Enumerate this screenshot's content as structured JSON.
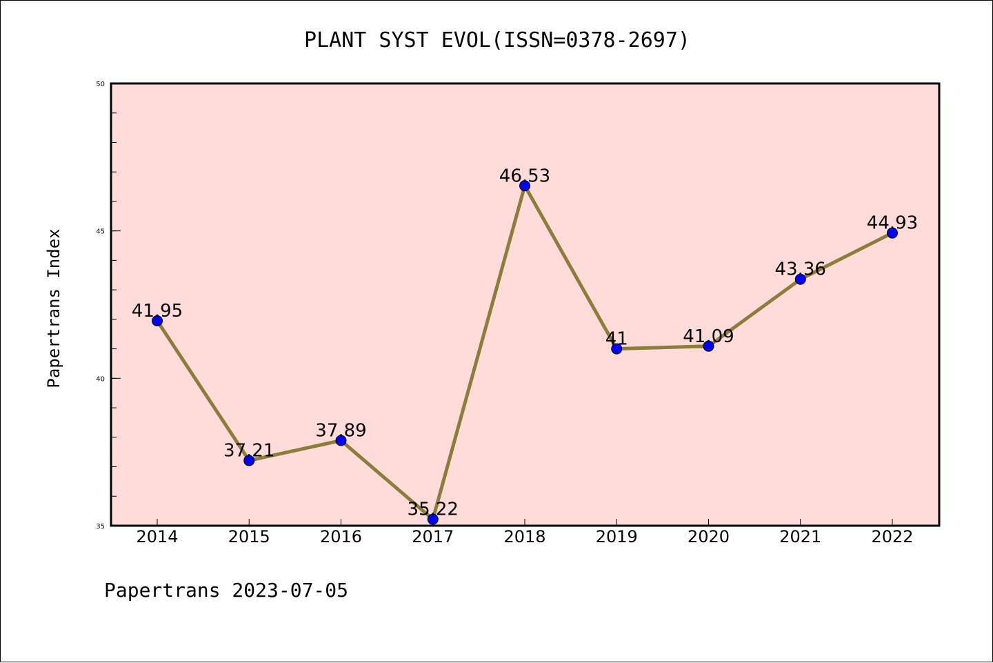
{
  "chart_data": {
    "type": "line",
    "title": "PLANT SYST EVOL(ISSN=0378-2697)",
    "xlabel": "",
    "ylabel": "Papertrans Index",
    "categories": [
      "2014",
      "2015",
      "2016",
      "2017",
      "2018",
      "2019",
      "2020",
      "2021",
      "2022"
    ],
    "series": [
      {
        "values": [
          41.95,
          37.21,
          37.89,
          35.22,
          46.53,
          41,
          41.09,
          43.36,
          44.93
        ],
        "labels": [
          "41.95",
          "37.21",
          "37.89",
          "35.22",
          "46.53",
          "41",
          "41.09",
          "43.36",
          "44.93"
        ]
      }
    ],
    "ylim": [
      35,
      50
    ],
    "yticks": [
      "35",
      "40",
      "45",
      "50"
    ],
    "grid": false,
    "legend": "none",
    "colors": {
      "plot_background": "#FFDCDA",
      "line": "#8B7D3A",
      "marker": "#0000FF"
    }
  },
  "footer": {
    "text": "Papertrans 2023-07-05"
  }
}
